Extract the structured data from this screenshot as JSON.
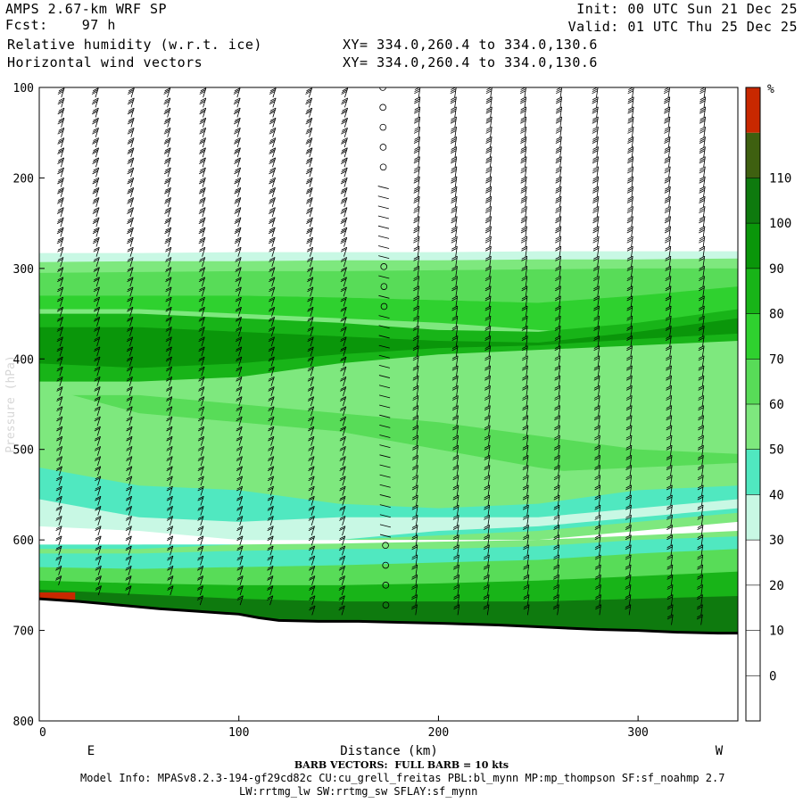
{
  "header": {
    "model": "AMPS 2.67-km WRF SP",
    "fcst": "Fcst:    97 h",
    "field": "Relative humidity (w.r.t. ice)",
    "vectors": "Horizontal wind vectors",
    "xy1": "XY= 334.0,260.4 to 334.0,130.6",
    "xy2": "XY= 334.0,260.4 to 334.0,130.6",
    "init": "Init: 00 UTC Sun 21 Dec 25",
    "valid": "Valid: 01 UTC Thu 25 Dec 25"
  },
  "footer": {
    "barb_note": "BARB VECTORS:  FULL BARB = 10 kts",
    "model_info": "Model Info: MPASv8.2.3-194-gf29cd82c CU:cu_grell_freitas PBL:bl_mynn MP:mp_thompson SF:sf_noahmp 2.7",
    "model_info2": "LW:rrtmg_lw SW:rrtmg_sw SFLAY:sf_mynn"
  },
  "chart_data": {
    "type": "heatmap",
    "title": "Relative humidity (w.r.t. ice) cross-section with horizontal wind vectors",
    "xlabel": "Distance (km)",
    "ylabel": "Pressure (hPa)",
    "xlim": [
      0,
      350
    ],
    "ylim": [
      800,
      100
    ],
    "x_ticks": [
      0,
      100,
      200,
      300
    ],
    "y_ticks": [
      100,
      200,
      300,
      400,
      500,
      600,
      700,
      800
    ],
    "left_end_label": "E",
    "right_end_label": "W",
    "colorbar": {
      "unit": "%",
      "ticks": [
        0,
        10,
        20,
        30,
        40,
        50,
        60,
        70,
        80,
        90,
        100,
        110
      ],
      "bins": [
        {
          "from": -10,
          "to": 20,
          "color": "#ffffff"
        },
        {
          "from": 20,
          "to": 30,
          "color": "#ffffff"
        },
        {
          "from": 30,
          "to": 40,
          "color": "#c8f8e4"
        },
        {
          "from": 40,
          "to": 50,
          "color": "#50e8c0"
        },
        {
          "from": 50,
          "to": 60,
          "color": "#7ee87e"
        },
        {
          "from": 60,
          "to": 70,
          "color": "#58dc58"
        },
        {
          "from": 70,
          "to": 80,
          "color": "#2fd12f"
        },
        {
          "from": 80,
          "to": 90,
          "color": "#18b418"
        },
        {
          "from": 90,
          "to": 100,
          "color": "#0a960a"
        },
        {
          "from": 100,
          "to": 110,
          "color": "#0e7a0e"
        },
        {
          "from": 110,
          "to": 120,
          "color": "#3e6010"
        },
        {
          "from": 120,
          "to": 130,
          "color": "#c82800"
        }
      ]
    },
    "bands": [
      {
        "top": [
          283,
          283,
          282,
          282,
          282,
          281,
          281,
          281
        ],
        "bottom": [
          800,
          800,
          800,
          800,
          800,
          800,
          800,
          800
        ],
        "rh": 35
      },
      {
        "top": [
          293,
          292,
          292,
          291,
          291,
          290,
          290,
          289
        ],
        "bottom": [
          800,
          800,
          800,
          800,
          800,
          800,
          800,
          800
        ],
        "rh": 55
      },
      {
        "top": [
          305,
          304,
          303,
          303,
          302,
          301,
          300,
          300
        ],
        "bottom": [
          330,
          330,
          330,
          332,
          335,
          338,
          340,
          345
        ],
        "rh": 65
      },
      {
        "top": [
          330,
          330,
          330,
          332,
          335,
          338,
          330,
          320
        ],
        "bottom": [
          345,
          345,
          350,
          355,
          360,
          368,
          375,
          370
        ],
        "rh": 75
      },
      {
        "top": [
          350,
          350,
          355,
          360,
          368,
          370,
          360,
          345
        ],
        "bottom": [
          425,
          425,
          420,
          405,
          395,
          390,
          385,
          380
        ],
        "rh": 85
      },
      {
        "top": [
          365,
          365,
          370,
          375,
          380,
          382,
          370,
          355
        ],
        "bottom": [
          405,
          410,
          405,
          395,
          388,
          385,
          378,
          372
        ],
        "rh": 95
      },
      {
        "top": [
          440,
          440,
          450,
          460,
          470,
          485,
          500,
          505
        ],
        "bottom": [
          500,
          505,
          510,
          520,
          525,
          525,
          520,
          515
        ],
        "rh": 65
      },
      {
        "top": [
          430,
          460,
          470,
          480,
          500,
          520,
          535,
          520
        ],
        "bottom": [
          550,
          560,
          575,
          570,
          560,
          555,
          545,
          535
        ],
        "rh": 55
      },
      {
        "top": [
          520,
          540,
          545,
          560,
          565,
          560,
          545,
          540
        ],
        "bottom": [
          610,
          610,
          605,
          600,
          595,
          590,
          580,
          570
        ],
        "rh": 45
      },
      {
        "top": [
          555,
          575,
          580,
          575,
          575,
          575,
          565,
          555
        ],
        "bottom": [
          605,
          605,
          600,
          600,
          590,
          585,
          575,
          565
        ],
        "rh": 35
      },
      {
        "top": [
          585,
          590,
          600,
          600,
          600,
          600,
          590,
          580
        ],
        "bottom": [
          605,
          605,
          605,
          604,
          602,
          600,
          595,
          590
        ],
        "rh": 25
      },
      {
        "top": [
          615,
          615,
          612,
          610,
          610,
          607,
          600,
          596
        ],
        "bottom": [
          640,
          640,
          640,
          638,
          636,
          632,
          625,
          620
        ],
        "rh": 45
      },
      {
        "top": [
          630,
          632,
          630,
          628,
          625,
          622,
          615,
          610
        ],
        "bottom": [
          800,
          800,
          800,
          800,
          800,
          800,
          800,
          800
        ],
        "rh": 65
      },
      {
        "top": [
          645,
          648,
          650,
          650,
          648,
          645,
          640,
          635
        ],
        "bottom": [
          800,
          800,
          800,
          800,
          800,
          800,
          800,
          800
        ],
        "rh": 85
      },
      {
        "top": [
          655,
          660,
          665,
          668,
          668,
          668,
          665,
          662
        ],
        "bottom": [
          800,
          800,
          800,
          800,
          800,
          800,
          800,
          800
        ],
        "rh": 105
      }
    ],
    "band_x": [
      0,
      50,
      100,
      150,
      200,
      250,
      300,
      350
    ],
    "terrain": {
      "x": [
        0,
        20,
        40,
        60,
        80,
        100,
        110,
        120,
        140,
        160,
        180,
        200,
        230,
        260,
        280,
        300,
        320,
        340,
        350
      ],
      "p": [
        665,
        668,
        672,
        676,
        679,
        682,
        686,
        689,
        690,
        690,
        691,
        692,
        694,
        697,
        699,
        700,
        702,
        703,
        703
      ]
    },
    "saturated_patch": {
      "x": [
        0,
        18
      ],
      "p": [
        658,
        666
      ],
      "rh": 125
    },
    "barb_columns": {
      "x": [
        12,
        29,
        47,
        65,
        83,
        100,
        118,
        136,
        154,
        173,
        191,
        209,
        227,
        244,
        262,
        280,
        298,
        316,
        334
      ],
      "calm_column_x": 173
    }
  }
}
